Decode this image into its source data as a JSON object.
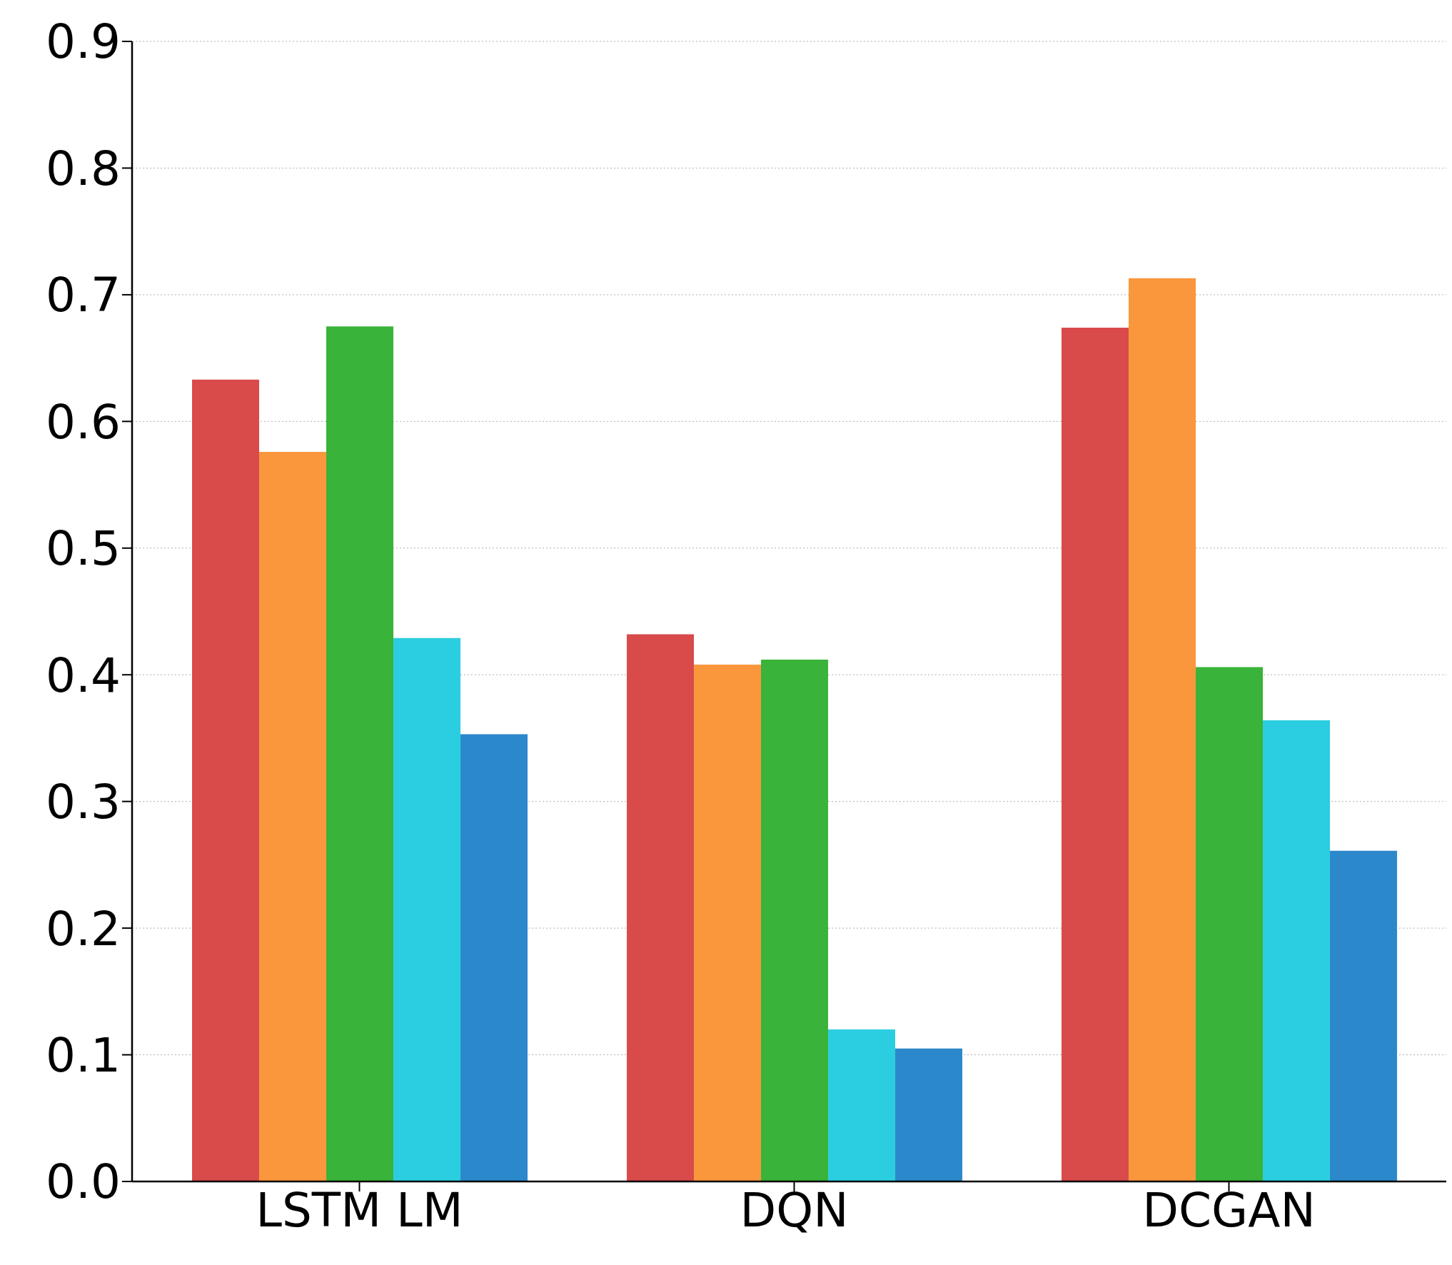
{
  "chart_data": {
    "type": "bar",
    "categories": [
      "LSTM LM",
      "DQN",
      "DCGAN"
    ],
    "series": [
      {
        "color": "#d94a4a",
        "values": [
          0.633,
          0.432,
          0.674
        ]
      },
      {
        "color": "#fa963c",
        "values": [
          0.576,
          0.408,
          0.713
        ]
      },
      {
        "color": "#39b339",
        "values": [
          0.675,
          0.412,
          0.406
        ]
      },
      {
        "color": "#2bcee0",
        "values": [
          0.429,
          0.12,
          0.364
        ]
      },
      {
        "color": "#2b88cb",
        "values": [
          0.353,
          0.105,
          0.261
        ]
      }
    ],
    "ylim": [
      0,
      0.9
    ],
    "yticks": [
      {
        "value": 0,
        "label": "0.0"
      },
      0.1,
      0.2,
      0.3,
      0.4,
      0.5,
      0.6,
      0.7,
      0.8,
      0.9
    ],
    "grid": "y",
    "legend": false
  }
}
